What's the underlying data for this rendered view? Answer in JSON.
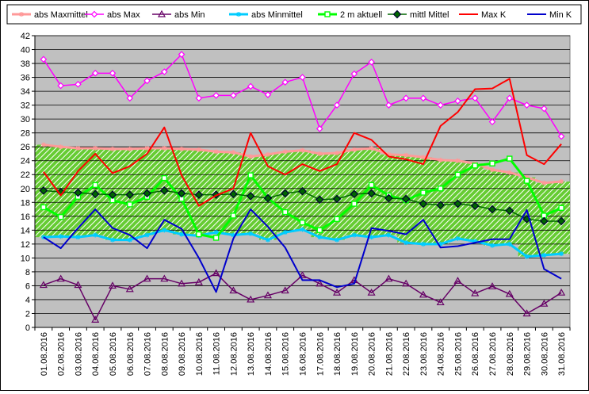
{
  "chart_data": {
    "type": "line",
    "title": "",
    "xlabel": "",
    "ylabel": "",
    "ylim": [
      0,
      42
    ],
    "yticks": [
      0,
      2,
      4,
      6,
      8,
      10,
      12,
      14,
      16,
      18,
      20,
      22,
      24,
      26,
      28,
      30,
      32,
      34,
      36,
      38,
      40,
      42
    ],
    "grid": true,
    "legend_position": "top",
    "plot_background": "#C0C0C0",
    "band_fill": "#66CC33",
    "categories": [
      "01.08.2016",
      "02.08.2016",
      "03.08.2016",
      "04.08.2016",
      "05.08.2016",
      "06.08.2016",
      "07.08.2016",
      "08.08.2016",
      "09.08.2016",
      "10.08.2016",
      "11.08.2016",
      "12.08.2016",
      "13.08.2016",
      "14.08.2016",
      "15.08.2016",
      "16.08.2016",
      "17.08.2016",
      "18.08.2016",
      "19.08.2016",
      "20.08.2016",
      "21.08.2016",
      "22.08.2016",
      "23.08.2016",
      "24.08.2016",
      "25.08.2016",
      "26.08.2016",
      "27.08.2016",
      "28.08.2016",
      "29.08.2016",
      "30.08.2016",
      "31.08.2016"
    ],
    "series": [
      {
        "name": "abs Maxmittel",
        "color": "#FF9999",
        "marker": "star",
        "values": [
          26.3,
          26.0,
          25.8,
          25.8,
          25.7,
          25.7,
          25.8,
          25.8,
          25.7,
          25.6,
          25.3,
          25.2,
          24.6,
          24.9,
          25.3,
          25.5,
          25.0,
          25.1,
          25.6,
          25.8,
          24.9,
          24.8,
          24.5,
          24.1,
          24.0,
          23.6,
          22.7,
          22.3,
          21.6,
          20.8,
          21.0
        ]
      },
      {
        "name": "abs Max",
        "color": "#FF00FF",
        "marker": "diamond-open",
        "values": [
          38.6,
          34.8,
          35.0,
          36.6,
          36.6,
          33.0,
          35.5,
          36.8,
          39.3,
          33.0,
          33.4,
          33.4,
          34.7,
          33.5,
          35.3,
          36.0,
          28.6,
          32.0,
          36.5,
          38.2,
          32.0,
          33.0,
          33.0,
          32.0,
          32.6,
          33.0,
          29.6,
          33.0,
          32.0,
          31.5,
          27.5
        ]
      },
      {
        "name": "abs Min",
        "color": "#660066",
        "marker": "triangle-open",
        "values": [
          6.1,
          7.0,
          6.1,
          1.1,
          6.0,
          5.5,
          7.0,
          7.0,
          6.3,
          6.5,
          7.8,
          5.3,
          4.0,
          4.6,
          5.3,
          7.5,
          6.3,
          5.0,
          6.8,
          5.0,
          7.0,
          6.3,
          4.7,
          3.6,
          6.7,
          4.9,
          5.9,
          4.8,
          2.0,
          3.4,
          5.0
        ]
      },
      {
        "name": "abs Minmittel",
        "color": "#00CCFF",
        "marker": "star",
        "values": [
          13.0,
          13.1,
          13.0,
          13.3,
          12.6,
          12.6,
          13.3,
          14.0,
          13.4,
          13.2,
          13.7,
          13.3,
          13.5,
          12.6,
          13.7,
          14.1,
          13.0,
          12.6,
          13.3,
          13.0,
          13.3,
          12.2,
          12.0,
          12.0,
          12.8,
          12.4,
          11.8,
          12.0,
          10.2,
          10.4,
          10.6
        ]
      },
      {
        "name": "2 m aktuell",
        "color": "#00FF00",
        "marker": "square-open",
        "values": [
          17.3,
          15.9,
          18.8,
          20.5,
          18.3,
          17.7,
          18.8,
          21.5,
          18.5,
          13.4,
          12.9,
          16.1,
          21.9,
          18.6,
          16.6,
          15.1,
          14.0,
          15.6,
          17.8,
          20.5,
          19.0,
          18.3,
          19.4,
          20.0,
          22.0,
          23.3,
          23.6,
          24.3,
          21.1,
          16.1,
          17.2
        ]
      },
      {
        "name": "mittl Mittel",
        "color": "#006600",
        "marker": "diamond",
        "values": [
          19.7,
          19.5,
          19.4,
          19.2,
          19.1,
          19.1,
          19.3,
          19.7,
          19.3,
          19.1,
          19.1,
          19.2,
          18.9,
          18.6,
          19.3,
          19.6,
          18.4,
          18.5,
          19.2,
          19.3,
          18.6,
          18.5,
          17.8,
          17.6,
          17.8,
          17.5,
          17.0,
          16.8,
          15.6,
          15.3,
          15.3
        ]
      },
      {
        "name": "Max K",
        "color": "#FF0000",
        "marker": "none",
        "values": [
          22.4,
          19.0,
          22.5,
          25.0,
          22.2,
          23.2,
          25.0,
          28.8,
          21.9,
          17.5,
          19.0,
          20.0,
          28.0,
          23.2,
          22.0,
          23.5,
          22.5,
          23.5,
          28.0,
          27.0,
          24.6,
          24.2,
          23.5,
          29.0,
          31.0,
          34.3,
          34.4,
          35.8,
          24.8,
          23.5,
          26.4
        ]
      },
      {
        "name": "Min K",
        "color": "#0000CC",
        "marker": "none",
        "values": [
          13.0,
          11.4,
          14.3,
          17.0,
          14.3,
          13.3,
          11.4,
          15.5,
          14.2,
          10.0,
          5.1,
          12.8,
          17.0,
          14.5,
          11.5,
          6.8,
          6.8,
          5.8,
          6.3,
          14.3,
          13.9,
          13.4,
          15.5,
          11.5,
          11.7,
          12.2,
          12.7,
          12.7,
          16.9,
          8.4,
          7.0
        ]
      }
    ]
  }
}
